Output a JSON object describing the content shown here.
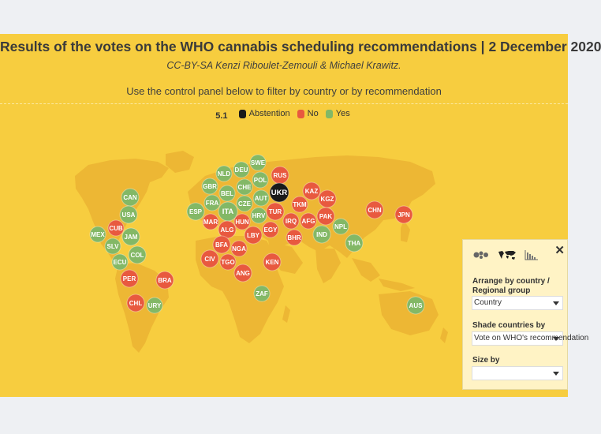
{
  "header": {
    "title": "Results of the votes on the WHO cannabis scheduling recommendations | 2 December 2020",
    "subtitle": "CC-BY-SA Kenzi Riboulet-Zemouli & Michael Krawitz.",
    "instruction": "Use the control panel below to filter by country or by recommendation"
  },
  "legend": {
    "code": "5.1",
    "items": [
      {
        "label": "Abstention",
        "color": "#1a1a1a"
      },
      {
        "label": "No",
        "color": "#e8593f"
      },
      {
        "label": "Yes",
        "color": "#83b866"
      }
    ]
  },
  "colors": {
    "background": "#f7cd3f",
    "land": "#edb734",
    "yes": "#83b866",
    "no": "#e8593f",
    "abstention": "#1a1a1a"
  },
  "countries": [
    {
      "code": "SWE",
      "vote": "yes"
    },
    {
      "code": "DEU",
      "vote": "yes"
    },
    {
      "code": "RUS",
      "vote": "no"
    },
    {
      "code": "NLD",
      "vote": "yes"
    },
    {
      "code": "GBR",
      "vote": "yes"
    },
    {
      "code": "POL",
      "vote": "yes"
    },
    {
      "code": "BEL",
      "vote": "yes"
    },
    {
      "code": "CHE",
      "vote": "yes"
    },
    {
      "code": "UKR",
      "vote": "abstention"
    },
    {
      "code": "KAZ",
      "vote": "no"
    },
    {
      "code": "CAN",
      "vote": "yes"
    },
    {
      "code": "FRA",
      "vote": "yes"
    },
    {
      "code": "AUT",
      "vote": "yes"
    },
    {
      "code": "KGZ",
      "vote": "no"
    },
    {
      "code": "ESP",
      "vote": "yes"
    },
    {
      "code": "ITA",
      "vote": "yes"
    },
    {
      "code": "CZE",
      "vote": "yes"
    },
    {
      "code": "TKM",
      "vote": "no"
    },
    {
      "code": "TUR",
      "vote": "no"
    },
    {
      "code": "USA",
      "vote": "yes"
    },
    {
      "code": "HRV",
      "vote": "yes"
    },
    {
      "code": "CHN",
      "vote": "no"
    },
    {
      "code": "JPN",
      "vote": "no"
    },
    {
      "code": "MAR",
      "vote": "no"
    },
    {
      "code": "HUN",
      "vote": "no"
    },
    {
      "code": "IRQ",
      "vote": "no"
    },
    {
      "code": "AFG",
      "vote": "no"
    },
    {
      "code": "PAK",
      "vote": "no"
    },
    {
      "code": "CUB",
      "vote": "no"
    },
    {
      "code": "ALG",
      "vote": "no"
    },
    {
      "code": "EGY",
      "vote": "no"
    },
    {
      "code": "LBY",
      "vote": "no"
    },
    {
      "code": "NPL",
      "vote": "yes"
    },
    {
      "code": "MEX",
      "vote": "yes"
    },
    {
      "code": "JAM",
      "vote": "yes"
    },
    {
      "code": "BHR",
      "vote": "no"
    },
    {
      "code": "IND",
      "vote": "yes"
    },
    {
      "code": "SLV",
      "vote": "yes"
    },
    {
      "code": "BFA",
      "vote": "no"
    },
    {
      "code": "NGA",
      "vote": "no"
    },
    {
      "code": "THA",
      "vote": "yes"
    },
    {
      "code": "COL",
      "vote": "yes"
    },
    {
      "code": "ECU",
      "vote": "yes"
    },
    {
      "code": "CIV",
      "vote": "no"
    },
    {
      "code": "TGO",
      "vote": "no"
    },
    {
      "code": "KEN",
      "vote": "no"
    },
    {
      "code": "ANG",
      "vote": "no"
    },
    {
      "code": "PER",
      "vote": "no"
    },
    {
      "code": "BRA",
      "vote": "no"
    },
    {
      "code": "ZAF",
      "vote": "yes"
    },
    {
      "code": "CHL",
      "vote": "no"
    },
    {
      "code": "URY",
      "vote": "yes"
    },
    {
      "code": "AUS",
      "vote": "yes"
    }
  ],
  "panel": {
    "close_label": "✕",
    "modes": [
      {
        "icon": "bubble-cluster-icon",
        "active": false
      },
      {
        "icon": "world-map-icon",
        "active": true
      },
      {
        "icon": "bar-chart-icon",
        "active": false
      }
    ],
    "arrange_label": "Arrange by country / Regional group",
    "arrange_value": "Country",
    "shade_label": "Shade countries by",
    "shade_value": "Vote on WHO's recommendation",
    "size_label": "Size by",
    "size_value": ""
  }
}
